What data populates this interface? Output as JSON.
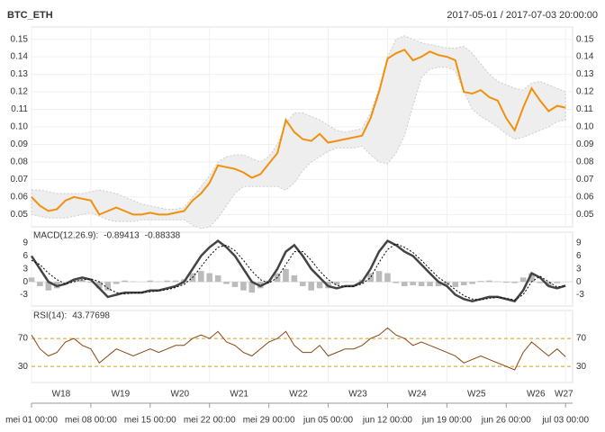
{
  "chart_data": [
    {
      "type": "line",
      "title": "BTC_ETH",
      "subtitle": "2017-05-01 / 2017-07-03 20:00:00",
      "x": [
        0,
        1,
        2,
        3,
        4,
        5,
        6,
        7,
        8,
        9,
        10,
        11,
        12,
        13,
        14,
        15,
        16,
        17,
        18,
        19,
        20,
        21,
        22,
        23,
        24,
        25,
        26,
        27,
        28,
        29,
        30,
        31,
        32,
        33,
        34,
        35,
        36,
        37,
        38,
        39,
        40,
        41,
        42,
        43,
        44,
        45,
        46,
        47,
        48,
        49,
        50,
        51,
        52,
        53,
        54,
        55,
        56,
        57,
        58,
        59,
        60,
        61,
        62,
        63
      ],
      "values": [
        0.06,
        0.055,
        0.052,
        0.053,
        0.058,
        0.06,
        0.059,
        0.058,
        0.05,
        0.052,
        0.054,
        0.052,
        0.05,
        0.05,
        0.051,
        0.05,
        0.05,
        0.051,
        0.052,
        0.058,
        0.062,
        0.068,
        0.078,
        0.077,
        0.076,
        0.074,
        0.071,
        0.073,
        0.079,
        0.085,
        0.104,
        0.097,
        0.093,
        0.092,
        0.096,
        0.091,
        0.092,
        0.093,
        0.094,
        0.095,
        0.105,
        0.12,
        0.139,
        0.142,
        0.144,
        0.138,
        0.14,
        0.143,
        0.141,
        0.14,
        0.138,
        0.12,
        0.119,
        0.121,
        0.117,
        0.115,
        0.105,
        0.098,
        0.111,
        0.122,
        0.115,
        0.109,
        0.112,
        0.111
      ],
      "color": "#f0900c",
      "band_upper": [
        0.064,
        0.064,
        0.063,
        0.062,
        0.062,
        0.062,
        0.062,
        0.063,
        0.064,
        0.063,
        0.062,
        0.06,
        0.058,
        0.056,
        0.055,
        0.054,
        0.053,
        0.053,
        0.054,
        0.06,
        0.066,
        0.072,
        0.08,
        0.083,
        0.084,
        0.084,
        0.082,
        0.08,
        0.083,
        0.09,
        0.102,
        0.108,
        0.108,
        0.106,
        0.104,
        0.101,
        0.098,
        0.097,
        0.098,
        0.099,
        0.108,
        0.122,
        0.14,
        0.15,
        0.152,
        0.15,
        0.148,
        0.147,
        0.146,
        0.145,
        0.145,
        0.146,
        0.142,
        0.136,
        0.13,
        0.126,
        0.124,
        0.122,
        0.121,
        0.125,
        0.126,
        0.124,
        0.122,
        0.12
      ],
      "band_lower": [
        0.05,
        0.049,
        0.048,
        0.048,
        0.048,
        0.049,
        0.05,
        0.051,
        0.049,
        0.047,
        0.046,
        0.046,
        0.046,
        0.047,
        0.047,
        0.047,
        0.047,
        0.047,
        0.047,
        0.044,
        0.042,
        0.043,
        0.048,
        0.055,
        0.062,
        0.066,
        0.066,
        0.066,
        0.066,
        0.066,
        0.064,
        0.068,
        0.075,
        0.08,
        0.083,
        0.086,
        0.088,
        0.088,
        0.088,
        0.089,
        0.084,
        0.08,
        0.079,
        0.085,
        0.095,
        0.112,
        0.128,
        0.133,
        0.134,
        0.134,
        0.132,
        0.12,
        0.11,
        0.106,
        0.103,
        0.1,
        0.096,
        0.093,
        0.094,
        0.096,
        0.098,
        0.1,
        0.103,
        0.104
      ],
      "band_color": "#eeeeee",
      "ylim": [
        0.043,
        0.157
      ],
      "yticks": [
        0.05,
        0.06,
        0.07,
        0.08,
        0.09,
        {
          "value": 0.1,
          "label": "0.10"
        },
        0.11,
        0.12,
        0.13,
        0.14,
        0.15
      ],
      "grid": true
    },
    {
      "type": "macd",
      "label": "MACD(12.26.9):",
      "macd": {
        "color": "#444444",
        "values": [
          6,
          3,
          0,
          -1,
          -0.5,
          0.5,
          1,
          0.5,
          -1.5,
          -3.5,
          -3,
          -2.5,
          -2.5,
          -2.5,
          -2,
          -2,
          -1.5,
          -1,
          0,
          3,
          6,
          8,
          9.5,
          8,
          6,
          3,
          0,
          -1,
          0,
          3,
          7,
          8.5,
          6,
          3,
          1,
          -1,
          -1.5,
          -1,
          -1,
          0,
          3,
          7,
          9.5,
          8.5,
          7,
          6,
          4,
          2,
          0,
          -1,
          -3,
          -4,
          -4.5,
          -4,
          -3.5,
          -3.5,
          -4,
          -4.5,
          -2,
          2,
          1,
          -1,
          -1.5,
          -0.89413
        ]
      },
      "signal": {
        "color": "#000000",
        "values": [
          5,
          4,
          2,
          0.5,
          -0.5,
          0,
          0.5,
          0.7,
          0,
          -1.5,
          -2.5,
          -2.8,
          -2.6,
          -2.5,
          -2.3,
          -2.1,
          -1.8,
          -1.3,
          -0.6,
          1,
          3.5,
          6,
          8,
          8.5,
          7.2,
          5,
          2.5,
          0.5,
          -0.3,
          1,
          4,
          7,
          7,
          5,
          2.5,
          0.5,
          -0.8,
          -1.1,
          -1,
          -0.5,
          1,
          4.5,
          7.5,
          8.8,
          8,
          6.8,
          5,
          3,
          1,
          -0.3,
          -1.8,
          -3.2,
          -4,
          -4.2,
          -3.8,
          -3.6,
          -3.8,
          -4.2,
          -3,
          0,
          1.3,
          0,
          -1.2,
          -0.88338
        ]
      },
      "histogram": {
        "color": "#bbbbbb",
        "values": [
          1,
          -1,
          -2,
          -1.5,
          0,
          0.5,
          0.5,
          -0.2,
          -1.5,
          -2,
          -0.5,
          0.3,
          0.1,
          0,
          0.3,
          0.1,
          0.3,
          0.3,
          0.6,
          2,
          2.5,
          2,
          1.5,
          -0.5,
          -1.2,
          -2,
          -2.5,
          -1.5,
          0.3,
          2,
          3,
          1.5,
          -1,
          -2,
          -1.5,
          -1.5,
          -0.7,
          0.1,
          0,
          0.5,
          2,
          2.5,
          2,
          -0.3,
          -1,
          -0.8,
          -1,
          -1,
          -1,
          -0.7,
          -1.2,
          -0.8,
          -0.5,
          0.2,
          0.3,
          0.1,
          -0.2,
          -0.3,
          1,
          2,
          -0.3,
          -1,
          -0.3,
          -0.01075
        ]
      },
      "ylim": [
        -5.6,
        11.5
      ],
      "yticks": [
        -3,
        0,
        3,
        6,
        9
      ]
    },
    {
      "type": "line",
      "label": "RSI(14):",
      "values": [
        75,
        55,
        45,
        50,
        65,
        70,
        60,
        55,
        35,
        45,
        55,
        50,
        45,
        50,
        55,
        50,
        55,
        60,
        60,
        70,
        75,
        70,
        80,
        65,
        60,
        50,
        45,
        55,
        65,
        70,
        80,
        60,
        50,
        50,
        60,
        45,
        50,
        55,
        55,
        60,
        70,
        75,
        85,
        75,
        70,
        60,
        65,
        60,
        55,
        50,
        45,
        35,
        40,
        45,
        40,
        35,
        30,
        25,
        50,
        65,
        55,
        45,
        55,
        43.77698
      ],
      "color": "#8b4513",
      "ref_color": "#d4a017",
      "ylim": [
        7,
        110
      ],
      "yticks": [
        30,
        70
      ],
      "xlim": [
        0,
        63.83
      ],
      "xticks": [
        {
          "value": 0,
          "label": "mei 01 00:00"
        },
        {
          "value": 7,
          "label": "mei 08 00:00"
        },
        {
          "value": 14,
          "label": "mei 15 00:00"
        },
        {
          "value": 21,
          "label": "mei 22 00:00"
        },
        {
          "value": 28,
          "label": "mei 29 00:00"
        },
        {
          "value": 35,
          "label": "jun 05 00:00"
        },
        {
          "value": 42,
          "label": "jun 12 00:00"
        },
        {
          "value": 49,
          "label": "jun 19 00:00"
        },
        {
          "value": 56,
          "label": "jun 26 00:00"
        },
        {
          "value": 63,
          "label": "jul 03 00:00"
        }
      ],
      "week_ticks": [
        {
          "value": 3.5,
          "label": "W18"
        },
        {
          "value": 10.5,
          "label": "W19"
        },
        {
          "value": 17.5,
          "label": "W20"
        },
        {
          "value": 24.5,
          "label": "W21"
        },
        {
          "value": 31.5,
          "label": "W22"
        },
        {
          "value": 38.5,
          "label": "W23"
        },
        {
          "value": 45.5,
          "label": "W24"
        },
        {
          "value": 52.5,
          "label": "W25"
        },
        {
          "value": 59.5,
          "label": "W26"
        },
        {
          "value": 62.8,
          "label": "W27"
        }
      ]
    }
  ]
}
